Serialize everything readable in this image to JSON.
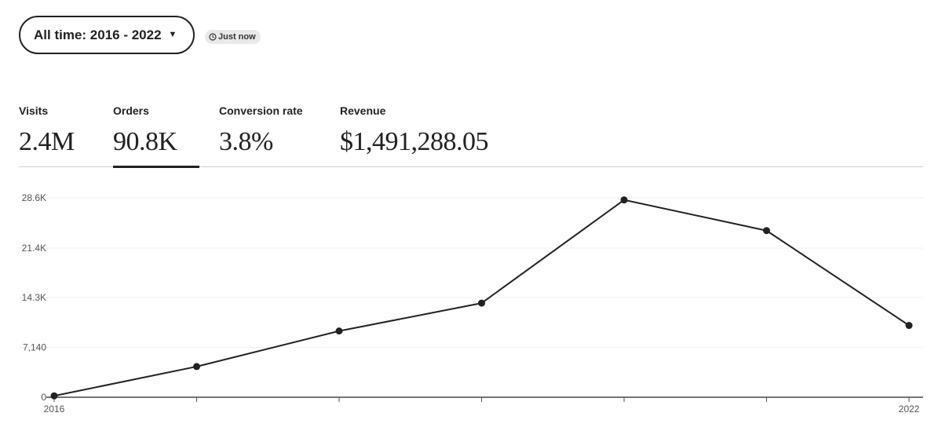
{
  "filter": {
    "range_label": "All time: 2016 - 2022",
    "updated_label": "Just now"
  },
  "stats": [
    {
      "label": "Visits",
      "value": "2.4M"
    },
    {
      "label": "Orders",
      "value": "90.8K"
    },
    {
      "label": "Conversion rate",
      "value": "3.8%"
    },
    {
      "label": "Revenue",
      "value": "$1,491,288.05"
    }
  ],
  "selected_stat": "Orders",
  "chart_data": {
    "type": "line",
    "x": [
      2016,
      2017,
      2018,
      2019,
      2020,
      2021,
      2022
    ],
    "x_tick_labels": [
      "2016",
      "",
      "",
      "",
      "",
      "",
      "2022"
    ],
    "series": [
      {
        "values": [
          200,
          4400,
          9500,
          13500,
          28300,
          23900,
          10300
        ]
      }
    ],
    "y_ticks": [
      0,
      7140,
      14300,
      21400,
      28600
    ],
    "y_tick_labels": [
      "0",
      "7,140",
      "14.3K",
      "21.4K",
      "28.6K"
    ],
    "ylim": [
      0,
      28600
    ],
    "grid": true,
    "line_color": "#222222"
  }
}
